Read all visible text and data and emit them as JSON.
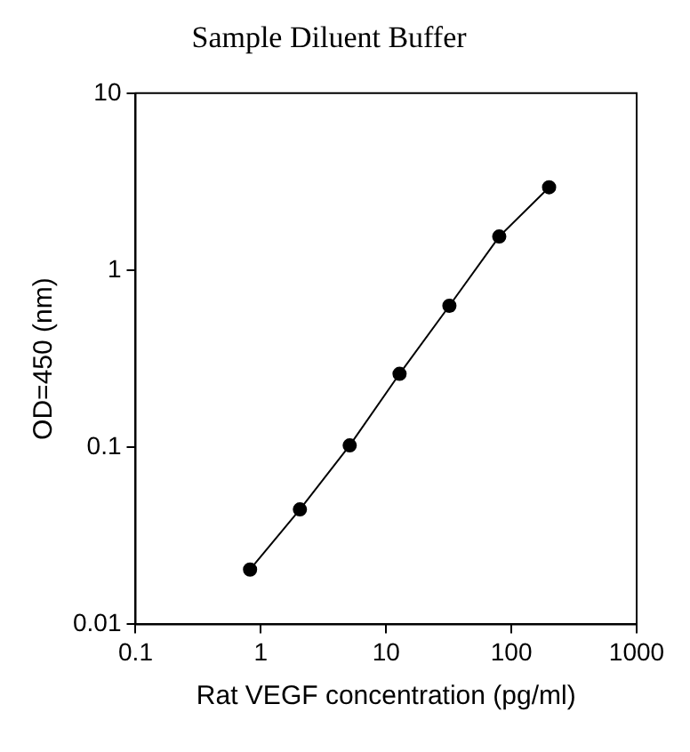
{
  "chart_data": {
    "type": "line",
    "title": "Sample Diluent Buffer",
    "xlabel": "Rat VEGF concentration (pg/ml)",
    "ylabel": "OD=450 (nm)",
    "log": "xy",
    "x": [
      0.82,
      2.05,
      5.12,
      12.8,
      32,
      80,
      200
    ],
    "series": [
      {
        "color": "#000000",
        "values": [
          0.0204,
          0.0446,
          0.1025,
          0.26,
          0.63,
          1.55,
          2.94
        ]
      }
    ],
    "xlim": [
      0.1,
      1000
    ],
    "xticks": [
      0.1,
      1,
      10,
      100,
      1000
    ],
    "ylim": [
      0.01,
      10
    ],
    "yticks": [
      0.01,
      0.1,
      1,
      10
    ],
    "grid": false,
    "legend": false,
    "marker": "circle",
    "line_style": "solid"
  }
}
